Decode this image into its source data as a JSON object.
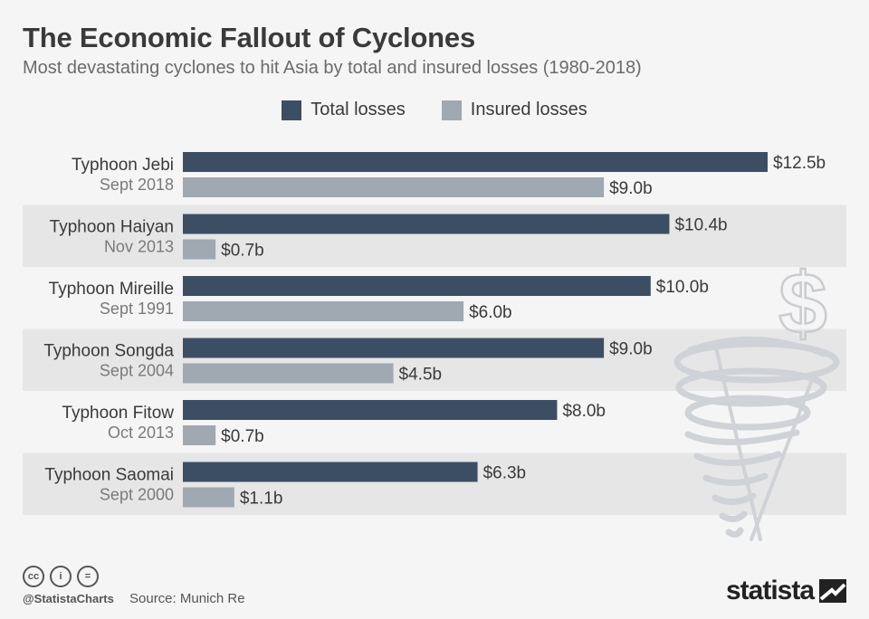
{
  "header": {
    "title": "The Economic Fallout of Cyclones",
    "subtitle": "Most devastating cyclones to hit Asia by total and insured losses (1980-2018)"
  },
  "legend": {
    "total_label": "Total losses",
    "insured_label": "Insured losses"
  },
  "colors": {
    "total": "#3c4e63",
    "insured": "#a0a8b2",
    "band": "#e6e6e6",
    "background": "#f5f5f5"
  },
  "footer": {
    "icons": [
      "cc-icon",
      "attribution-icon",
      "no-derivatives-icon"
    ],
    "icon_glyphs": [
      "cc",
      "i",
      "="
    ],
    "handle": "@StatistaCharts",
    "source": "Source: Munich Re",
    "brand": "statista"
  },
  "chart_data": {
    "type": "bar",
    "orientation": "horizontal",
    "categories": [
      {
        "name": "Typhoon Jebi",
        "date": "Sept 2018"
      },
      {
        "name": "Typhoon Haiyan",
        "date": "Nov 2013"
      },
      {
        "name": "Typhoon Mireille",
        "date": "Sept 1991"
      },
      {
        "name": "Typhoon Songda",
        "date": "Sept 2004"
      },
      {
        "name": "Typhoon Fitow",
        "date": "Oct 2013"
      },
      {
        "name": "Typhoon Saomai",
        "date": "Sept 2000"
      }
    ],
    "series": [
      {
        "name": "Total losses",
        "values": [
          12.5,
          10.4,
          10.0,
          9.0,
          8.0,
          6.3
        ],
        "labels": [
          "$12.5b",
          "$10.4b",
          "$10.0b",
          "$9.0b",
          "$8.0b",
          "$6.3b"
        ]
      },
      {
        "name": "Insured losses",
        "values": [
          9.0,
          0.7,
          6.0,
          4.5,
          0.7,
          1.1
        ],
        "labels": [
          "$9.0b",
          "$0.7b",
          "$6.0b",
          "$4.5b",
          "$0.7b",
          "$1.1b"
        ]
      }
    ],
    "xlim": [
      0,
      12.5
    ],
    "unit": "billion USD",
    "legend_position": "top-center",
    "grid": false
  }
}
